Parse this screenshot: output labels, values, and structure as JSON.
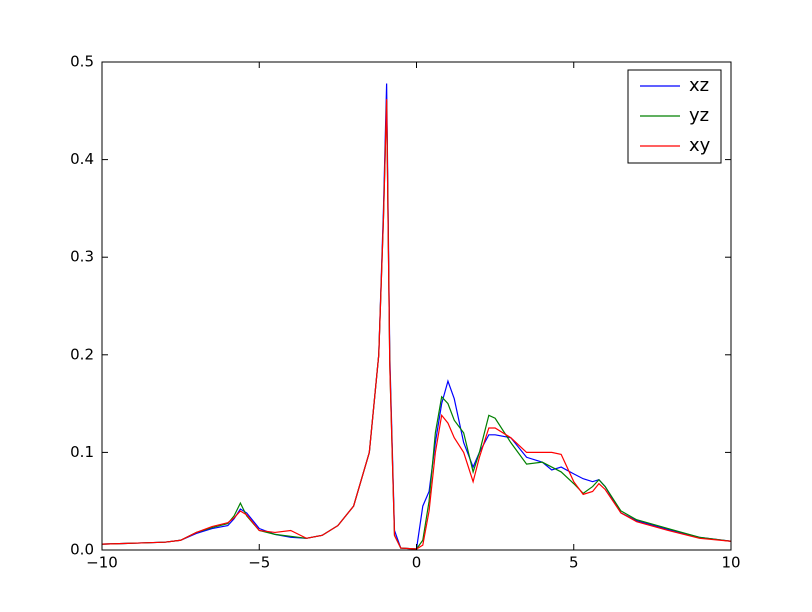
{
  "chart_data": {
    "type": "line",
    "x": [
      -10,
      -9,
      -8,
      -7.5,
      -7,
      -6.5,
      -6,
      -5.8,
      -5.6,
      -5.4,
      -5,
      -4.5,
      -4,
      -3.5,
      -3,
      -2.5,
      -2,
      -1.5,
      -1.2,
      -1.05,
      -0.95,
      -0.85,
      -0.7,
      -0.5,
      0,
      0.2,
      0.4,
      0.6,
      0.8,
      1.0,
      1.2,
      1.5,
      1.8,
      2.0,
      2.3,
      2.5,
      3,
      3.5,
      4,
      4.3,
      4.6,
      5,
      5.3,
      5.6,
      5.8,
      6,
      6.5,
      7,
      8,
      9,
      10
    ],
    "series": [
      {
        "name": "xz",
        "color": "#0000ff",
        "values": [
          0.006,
          0.007,
          0.008,
          0.01,
          0.017,
          0.022,
          0.025,
          0.032,
          0.042,
          0.038,
          0.022,
          0.016,
          0.013,
          0.012,
          0.015,
          0.025,
          0.045,
          0.1,
          0.2,
          0.35,
          0.478,
          0.2,
          0.02,
          0.002,
          0.001,
          0.045,
          0.06,
          0.11,
          0.15,
          0.173,
          0.155,
          0.11,
          0.085,
          0.1,
          0.118,
          0.118,
          0.115,
          0.095,
          0.09,
          0.082,
          0.085,
          0.078,
          0.073,
          0.07,
          0.072,
          0.065,
          0.038,
          0.03,
          0.021,
          0.013,
          0.009
        ]
      },
      {
        "name": "yz",
        "color": "#008000",
        "values": [
          0.006,
          0.007,
          0.008,
          0.01,
          0.018,
          0.023,
          0.027,
          0.035,
          0.048,
          0.035,
          0.02,
          0.016,
          0.014,
          0.012,
          0.015,
          0.025,
          0.045,
          0.1,
          0.2,
          0.34,
          0.46,
          0.19,
          0.015,
          0.002,
          0.001,
          0.01,
          0.05,
          0.12,
          0.157,
          0.15,
          0.133,
          0.12,
          0.08,
          0.1,
          0.138,
          0.135,
          0.11,
          0.088,
          0.09,
          0.085,
          0.08,
          0.068,
          0.058,
          0.065,
          0.072,
          0.065,
          0.04,
          0.031,
          0.022,
          0.013,
          0.009
        ]
      },
      {
        "name": "xy",
        "color": "#ff0000",
        "values": [
          0.006,
          0.007,
          0.008,
          0.01,
          0.018,
          0.024,
          0.028,
          0.033,
          0.04,
          0.036,
          0.02,
          0.018,
          0.02,
          0.012,
          0.015,
          0.025,
          0.045,
          0.1,
          0.2,
          0.34,
          0.462,
          0.19,
          0.015,
          0.002,
          0.001,
          0.005,
          0.04,
          0.1,
          0.138,
          0.13,
          0.115,
          0.1,
          0.07,
          0.095,
          0.125,
          0.125,
          0.115,
          0.1,
          0.1,
          0.1,
          0.098,
          0.07,
          0.057,
          0.06,
          0.068,
          0.062,
          0.038,
          0.029,
          0.02,
          0.012,
          0.009
        ]
      }
    ],
    "xlim": [
      -10,
      10
    ],
    "xticks": [
      {
        "value": -10,
        "label": "−10"
      },
      {
        "value": -5,
        "label": "−5"
      },
      0,
      5,
      10
    ],
    "ylim": [
      0,
      0.5
    ],
    "yticks": [
      {
        "value": 0,
        "label": "0.0"
      },
      0.1,
      0.2,
      0.3,
      0.4,
      0.5
    ],
    "legend": "upper right"
  }
}
